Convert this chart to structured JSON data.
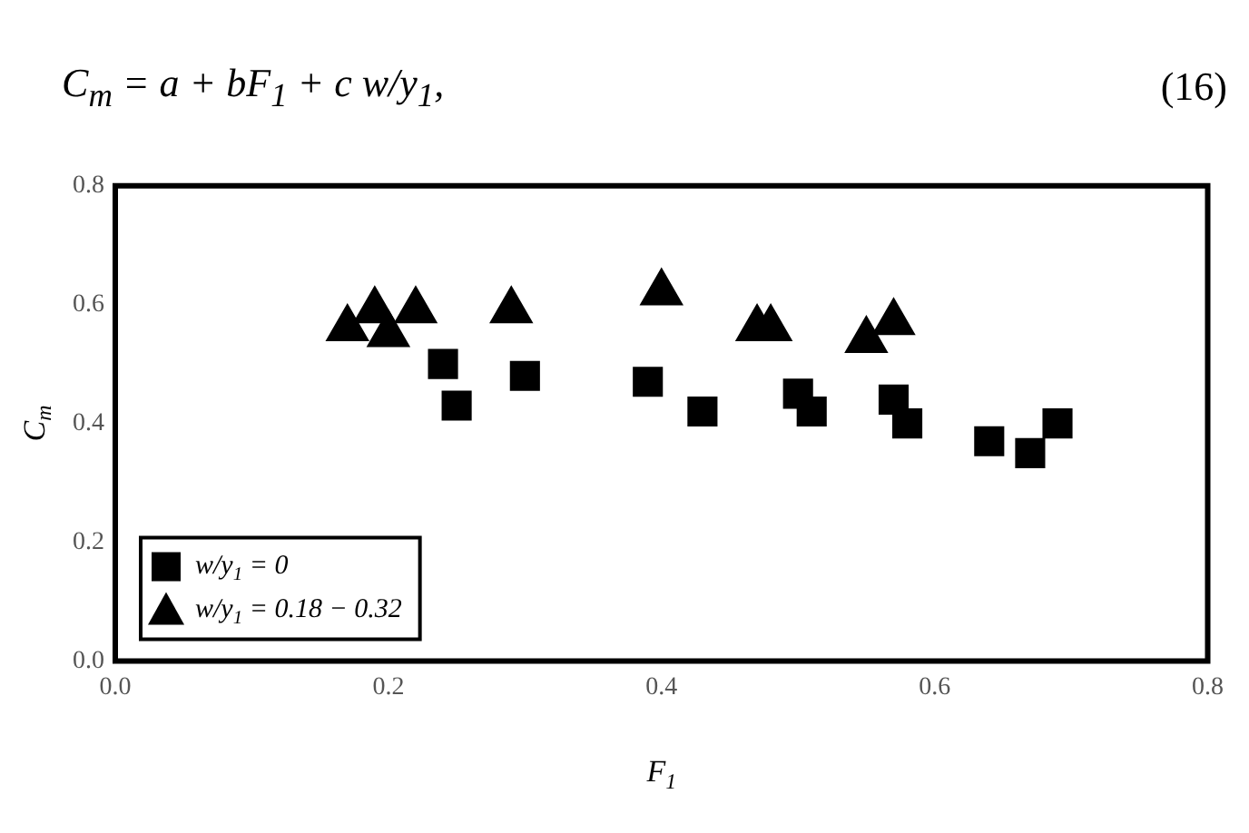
{
  "chart_data": {
    "type": "scatter",
    "xlabel": "F$_{1}$",
    "ylabel": "C$_{m}$",
    "annotations": [
      "C$_{m}$ = a + bF$_{1}$ + c w/y$_{1}$,",
      "(16)"
    ],
    "xlim": [
      0,
      0.8
    ],
    "xticks": [
      {
        "value": 0,
        "label": "0.0"
      },
      0.2,
      0.4,
      0.6,
      0.8
    ],
    "ylim": [
      0,
      0.8
    ],
    "yticks": [
      {
        "value": 0,
        "label": "0.0"
      },
      0.2,
      0.4,
      0.6,
      0.8
    ],
    "grid": false,
    "legend": "bottom left",
    "series": [
      {
        "name": "w/y$_{1}$ = 0",
        "color": "#000000",
        "marker": "square",
        "x": [
          0.24,
          0.25,
          0.3,
          0.39,
          0.43,
          0.5,
          0.51,
          0.57,
          0.58,
          0.64,
          0.67,
          0.69
        ],
        "values": [
          0.5,
          0.43,
          0.48,
          0.47,
          0.42,
          0.45,
          0.42,
          0.44,
          0.4,
          0.37,
          0.35,
          0.4
        ]
      },
      {
        "name": "w/y$_{1}$ = 0.18 − 0.32",
        "color": "#000000",
        "marker": "triangle",
        "x": [
          0.17,
          0.19,
          0.22,
          0.2,
          0.29,
          0.4,
          0.47,
          0.48,
          0.55,
          0.57
        ],
        "values": [
          0.56,
          0.59,
          0.59,
          0.55,
          0.59,
          0.62,
          0.56,
          0.56,
          0.54,
          0.57
        ]
      }
    ]
  }
}
